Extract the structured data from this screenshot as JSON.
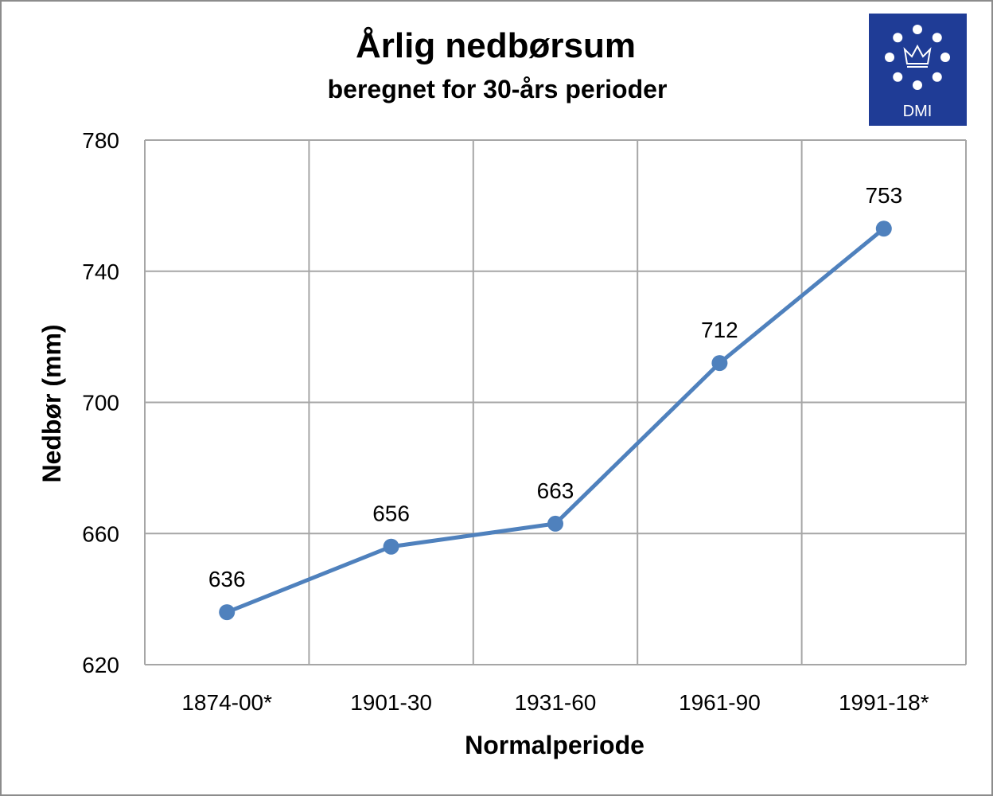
{
  "chart_data": {
    "type": "line",
    "title": "Årlig nedbørsum",
    "subtitle": "beregnet for 30-års perioder",
    "xlabel": "Normalperiode",
    "ylabel": "Nedbør (mm)",
    "categories": [
      "1874-00*",
      "1901-30",
      "1931-60",
      "1961-90",
      "1991-18*"
    ],
    "series": [
      {
        "values": [
          636,
          656,
          663,
          712,
          753
        ]
      }
    ],
    "data_labels": [
      "636",
      "656",
      "663",
      "712",
      "753"
    ],
    "ylim": [
      620,
      780
    ],
    "yticks": [
      620,
      660,
      700,
      740,
      780
    ],
    "ytick_labels": [
      "620",
      "660",
      "700",
      "740",
      "780"
    ],
    "grid": true,
    "legend": "none",
    "line_color": "#4f81bd",
    "grid_color": "#a6a6a6"
  },
  "logo": {
    "text": "DMI",
    "background": "#1f3c96",
    "foreground": "#ffffff",
    "icon": "crown-stars-icon"
  }
}
